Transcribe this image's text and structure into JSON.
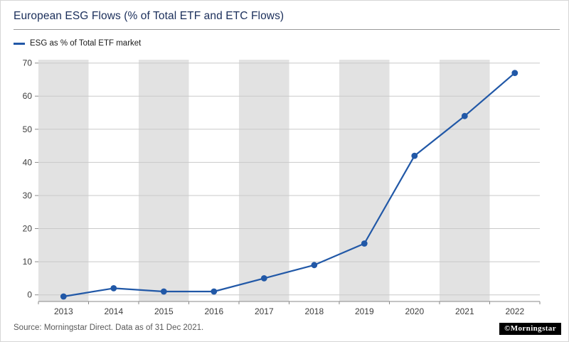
{
  "chart_data": {
    "type": "line",
    "title": "European ESG Flows (% of Total ETF and ETC Flows)",
    "x": [
      "2013",
      "2014",
      "2015",
      "2016",
      "2017",
      "2018",
      "2019",
      "2020",
      "2021",
      "2022"
    ],
    "series": [
      {
        "name": "ESG as % of Total ETF market",
        "values": [
          -0.5,
          2,
          1,
          1,
          5,
          9,
          15.5,
          42,
          54,
          67
        ]
      }
    ],
    "ylim": [
      -2,
      71
    ],
    "yticks": [
      0,
      10,
      20,
      30,
      40,
      50,
      60,
      70
    ],
    "grid": true,
    "legend_position": "top-left",
    "shaded_band_years": [
      "2013",
      "2015",
      "2017",
      "2019",
      "2021"
    ]
  },
  "footer": {
    "source": "Source: Morningstar Direct. Data as of 31 Dec 2021.",
    "logo_text": "©Morningstar"
  },
  "colors": {
    "line": "#2158a7",
    "title_text": "#1a2e5a",
    "band": "#e2e2e2",
    "grid": "#c9c9c9",
    "axis": "#8a8a8a",
    "tick_text": "#3c3c3c",
    "source_text": "#595959",
    "logo_bg": "#000000",
    "logo_fg": "#ffffff"
  }
}
